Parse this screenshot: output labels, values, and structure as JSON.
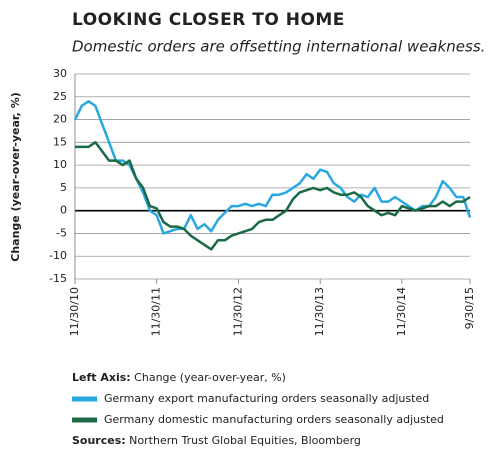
{
  "chart_data": {
    "type": "line",
    "title": "LOOKING CLOSER TO HOME",
    "subtitle": "Domestic orders are offsetting international weakness.",
    "y_label": "Change (year-over-year, %)",
    "categories": [
      "11/30/10",
      null,
      null,
      null,
      null,
      null,
      null,
      null,
      null,
      null,
      null,
      null,
      "11/30/11",
      null,
      null,
      null,
      null,
      null,
      null,
      null,
      null,
      null,
      null,
      null,
      "11/30/12",
      null,
      null,
      null,
      null,
      null,
      null,
      null,
      null,
      null,
      null,
      null,
      "11/30/13",
      null,
      null,
      null,
      null,
      null,
      null,
      null,
      null,
      null,
      null,
      null,
      "11/30/14",
      null,
      null,
      null,
      null,
      null,
      null,
      null,
      null,
      null,
      "9/30/15"
    ],
    "series": [
      {
        "name": "Germany export manufacturing orders seasonally adjusted",
        "color": "#29a8e0",
        "values": [
          20,
          23,
          24,
          23,
          19,
          15,
          11,
          11,
          10,
          7,
          4,
          0,
          -1,
          -5,
          -4.5,
          -4,
          -4,
          -1,
          -4,
          -3,
          -4.5,
          -2,
          -0.5,
          1,
          1,
          1.5,
          1,
          1.5,
          1,
          3.5,
          3.5,
          4,
          5,
          6,
          8,
          7,
          9,
          8.5,
          6,
          5,
          3,
          2,
          3.5,
          3,
          5,
          2,
          2,
          3,
          2,
          1,
          0,
          1,
          1,
          3,
          6.5,
          5,
          3,
          3,
          -1.5
        ]
      },
      {
        "name": "Germany domestic manufacturing orders seasonally adjusted",
        "color": "#1a6b45",
        "values": [
          14,
          14,
          14,
          15,
          13,
          11,
          11,
          10,
          11,
          7,
          5,
          1,
          0.5,
          -2.5,
          -3.5,
          -3.5,
          -4,
          -5.5,
          -6.5,
          -7.5,
          -8.5,
          -6.5,
          -6.5,
          -5.5,
          -5,
          -4.5,
          -4,
          -2.5,
          -2,
          -2,
          -1,
          0,
          2.5,
          4,
          4.5,
          5,
          4.5,
          5,
          4,
          3.5,
          3.5,
          4,
          3,
          1,
          0,
          -1,
          -0.5,
          -1,
          1,
          0.5,
          0,
          0.5,
          1,
          1,
          2,
          1,
          2,
          2,
          3
        ]
      }
    ],
    "ylim": [
      -15,
      30
    ],
    "yticks": [
      30,
      25,
      20,
      15,
      10,
      5,
      0,
      -5,
      -10,
      -15
    ],
    "grid": true,
    "note": {
      "label": "Left Axis:",
      "text": "Change (year-over-year, %)"
    },
    "source": {
      "label": "Sources:",
      "text": "Northern Trust Global Equities, Bloomberg"
    }
  }
}
